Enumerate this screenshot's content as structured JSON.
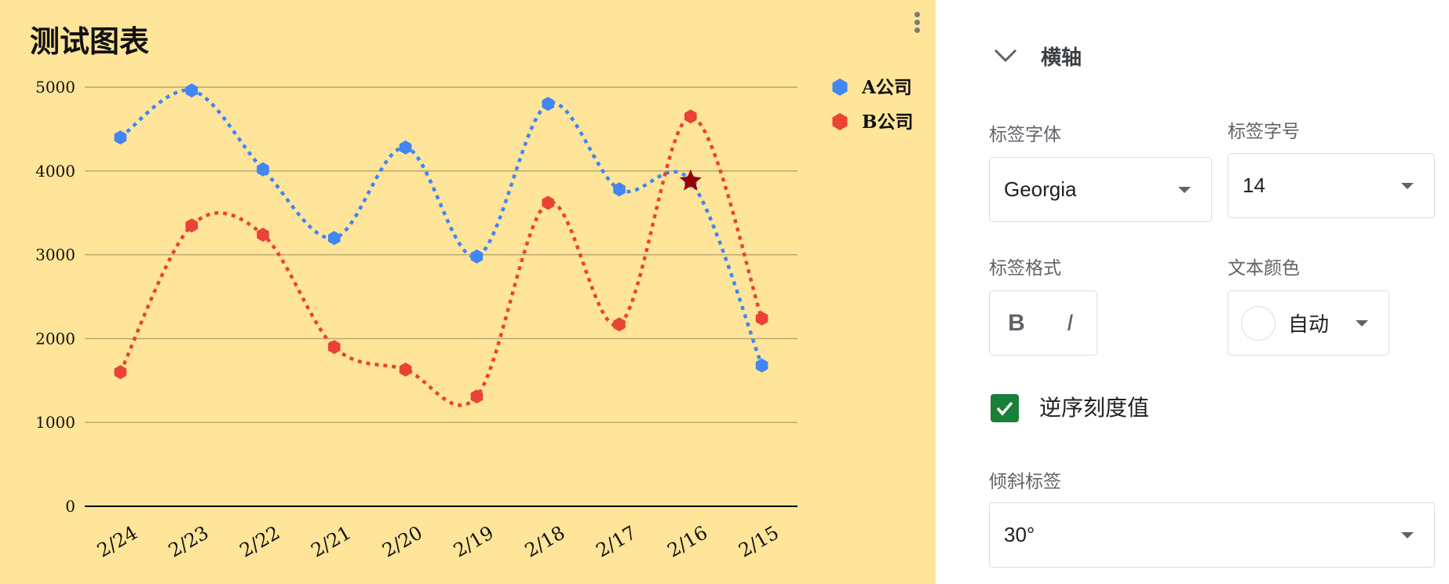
{
  "chart_data": {
    "type": "line",
    "title": "测试图表",
    "categories": [
      "2/24",
      "2/23",
      "2/22",
      "2/21",
      "2/20",
      "2/19",
      "2/18",
      "2/17",
      "2/16",
      "2/15"
    ],
    "series": [
      {
        "name": "A公司",
        "color": "#4285f4",
        "values": [
          4400,
          4960,
          4020,
          3200,
          4280,
          2980,
          4800,
          3780,
          3880,
          1680
        ]
      },
      {
        "name": "B公司",
        "color": "#ea4335",
        "values": [
          1600,
          3350,
          3240,
          1900,
          1630,
          1310,
          3620,
          2170,
          4650,
          2240
        ]
      }
    ],
    "yticks": [
      0,
      1000,
      2000,
      3000,
      4000,
      5000
    ],
    "ylim": [
      0,
      5000
    ],
    "grid": true,
    "line_style": "dotted-smooth",
    "legend_position": "right",
    "x_label_rotation": "-30°",
    "highlight_marker": {
      "category": "2/16",
      "value": 3880,
      "shape": "star",
      "color": "#990000"
    },
    "background": "#ffe599"
  },
  "menu": {
    "icon": "more-vert-icon"
  },
  "panel": {
    "section_title": "横轴",
    "font_label": "标签字体",
    "font_value": "Georgia",
    "size_label": "标签字号",
    "size_value": "14",
    "format_label": "标签格式",
    "bold_glyph": "B",
    "italic_glyph": "I",
    "color_label": "文本颜色",
    "color_value": "自动",
    "reverse_label": "逆序刻度值",
    "reverse_checked": true,
    "slant_label": "倾斜标签",
    "slant_value": "30°"
  },
  "colors": {
    "accent_green": "#188038",
    "chart_bg": "#ffe599"
  }
}
